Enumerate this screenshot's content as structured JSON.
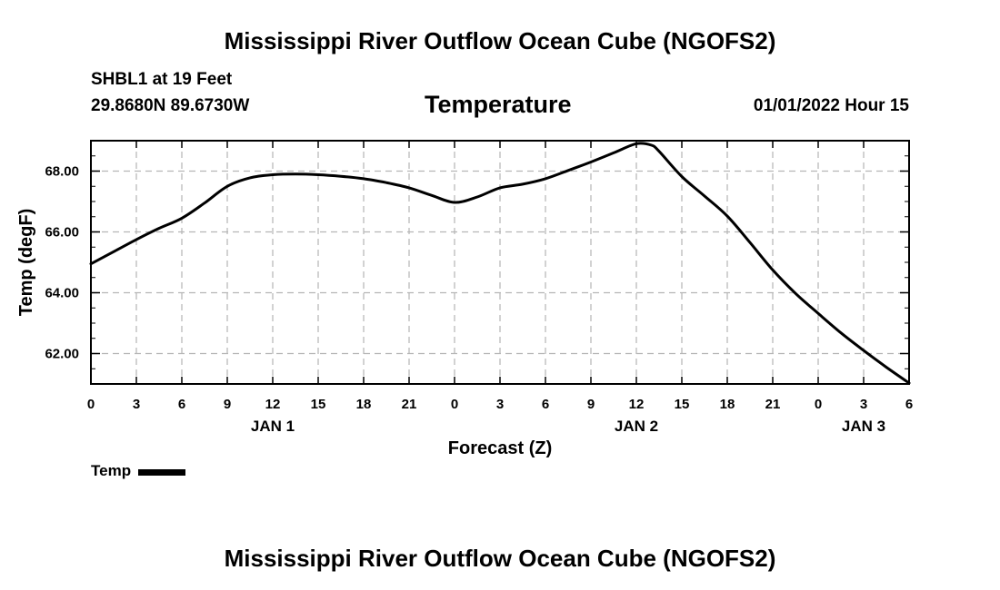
{
  "header": {
    "title": "Mississippi River Outflow Ocean Cube (NGOFS2)",
    "station": "SHBL1 at 19 Feet",
    "coords": "29.8680N  89.6730W",
    "chart_title": "Temperature",
    "timestamp": "01/01/2022 Hour 15"
  },
  "footer": {
    "title": "Mississippi River Outflow Ocean Cube (NGOFS2)"
  },
  "legend": {
    "label": "Temp",
    "line_color": "#000000"
  },
  "chart_data": {
    "type": "line",
    "title": "Temperature",
    "xlabel": "Forecast (Z)",
    "ylabel": "Temp (degF)",
    "xlim": [
      0,
      54
    ],
    "ylim": [
      61.0,
      69.0
    ],
    "grid": true,
    "x_tick_values": [
      0,
      3,
      6,
      9,
      12,
      15,
      18,
      21,
      24,
      27,
      30,
      33,
      36,
      39,
      42,
      45,
      48,
      51,
      54
    ],
    "x_tick_labels": [
      "0",
      "3",
      "6",
      "9",
      "12",
      "15",
      "18",
      "21",
      "0",
      "3",
      "6",
      "9",
      "12",
      "15",
      "18",
      "21",
      "0",
      "3",
      "6"
    ],
    "y_tick_values": [
      62,
      64,
      66,
      68
    ],
    "y_tick_labels": [
      "62.00",
      "64.00",
      "66.00",
      "68.00"
    ],
    "day_labels": [
      {
        "x": 12,
        "label": "JAN 1"
      },
      {
        "x": 36,
        "label": "JAN 2"
      },
      {
        "x": 51,
        "label": "JAN 3"
      }
    ],
    "series": [
      {
        "name": "Temp",
        "color": "#000000",
        "x": [
          0,
          1.5,
          3,
          4.5,
          6,
          7.5,
          9,
          10.5,
          12,
          13.5,
          15,
          16.5,
          18,
          19.5,
          21,
          22.5,
          24,
          25.5,
          27,
          28.5,
          30,
          31.5,
          33,
          34.5,
          36,
          37,
          37.5,
          39,
          40.5,
          42,
          43.5,
          45,
          46.5,
          48,
          49.5,
          51,
          52.5,
          54
        ],
        "values": [
          64.95,
          65.35,
          65.75,
          66.12,
          66.45,
          66.95,
          67.5,
          67.78,
          67.88,
          67.9,
          67.88,
          67.83,
          67.75,
          67.62,
          67.45,
          67.2,
          66.97,
          67.15,
          67.45,
          67.57,
          67.75,
          68.02,
          68.3,
          68.6,
          68.9,
          68.85,
          68.65,
          67.82,
          67.18,
          66.52,
          65.65,
          64.75,
          63.98,
          63.32,
          62.68,
          62.1,
          61.55,
          61.03
        ]
      }
    ]
  }
}
